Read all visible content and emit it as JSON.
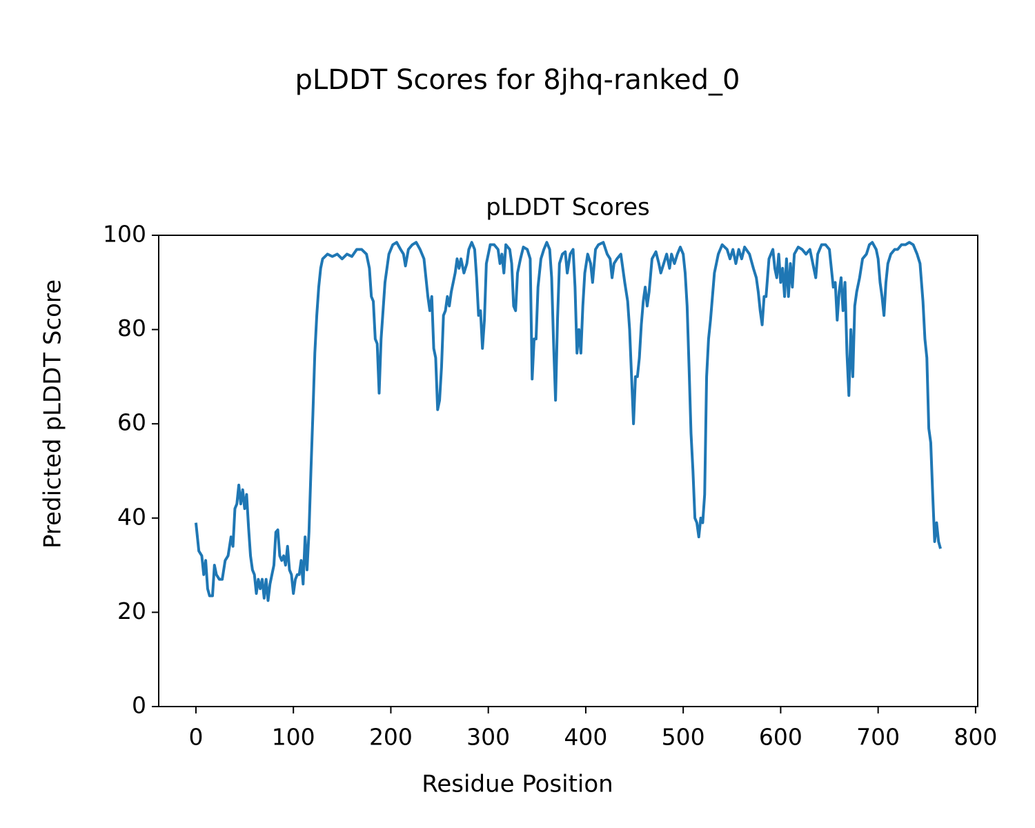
{
  "chart_data": {
    "type": "line",
    "title": "pLDDT Scores for 8jhq-ranked_0",
    "subtitle": "pLDDT Scores",
    "x_label": "Residue Position",
    "y_label": "Predicted pLDDT Score",
    "color": "#1f77b4",
    "xlim": [
      -38.2,
      802.2
    ],
    "xticks": [
      0,
      100,
      200,
      300,
      400,
      500,
      600,
      700,
      800
    ],
    "ylim": [
      0,
      100
    ],
    "yticks": [
      0,
      20,
      40,
      60,
      80,
      100
    ],
    "x": [
      0,
      3,
      6,
      8,
      10,
      12,
      14,
      17,
      19,
      21,
      24,
      27,
      30,
      33,
      36,
      38,
      40,
      42,
      44,
      46,
      48,
      50,
      52,
      54,
      56,
      58,
      60,
      62,
      64,
      66,
      68,
      70,
      72,
      74,
      76,
      78,
      80,
      82,
      84,
      86,
      88,
      90,
      92,
      94,
      96,
      98,
      100,
      102,
      104,
      106,
      108,
      110,
      112,
      114,
      116,
      118,
      120,
      122,
      124,
      126,
      128,
      130,
      135,
      140,
      145,
      150,
      155,
      160,
      165,
      170,
      175,
      178,
      180,
      182,
      184,
      186,
      188,
      190,
      192,
      194,
      196,
      198,
      202,
      206,
      210,
      213,
      215,
      218,
      222,
      226,
      230,
      234,
      236,
      238,
      240,
      242,
      244,
      246,
      248,
      250,
      252,
      254,
      256,
      258,
      260,
      262,
      264,
      266,
      268,
      270,
      272,
      275,
      278,
      280,
      283,
      286,
      288,
      290,
      292,
      294,
      296,
      298,
      302,
      306,
      310,
      312,
      314,
      316,
      318,
      322,
      324,
      326,
      328,
      330,
      333,
      336,
      340,
      343,
      345,
      347,
      349,
      351,
      354,
      357,
      360,
      363,
      365,
      367,
      369,
      371,
      373,
      376,
      379,
      381,
      384,
      387,
      389,
      391,
      393,
      395,
      397,
      399,
      402,
      405,
      407,
      410,
      413,
      418,
      422,
      425,
      427,
      429,
      432,
      436,
      438,
      440,
      443,
      445,
      447,
      449,
      451,
      453,
      455,
      457,
      459,
      461,
      463,
      465,
      468,
      472,
      475,
      477,
      480,
      483,
      486,
      488,
      491,
      494,
      497,
      500,
      502,
      504,
      506,
      508,
      510,
      512,
      514,
      516,
      518,
      520,
      522,
      524,
      526,
      528,
      530,
      532,
      536,
      540,
      545,
      548,
      551,
      554,
      557,
      560,
      563,
      568,
      572,
      575,
      577,
      579,
      581,
      583,
      585,
      588,
      592,
      594,
      596,
      598,
      600,
      602,
      604,
      606,
      608,
      610,
      612,
      614,
      618,
      622,
      626,
      630,
      634,
      636,
      638,
      642,
      646,
      650,
      652,
      654,
      656,
      658,
      660,
      662,
      664,
      666,
      668,
      670,
      672,
      674,
      676,
      678,
      681,
      684,
      688,
      691,
      694,
      698,
      700,
      702,
      704,
      706,
      708,
      710,
      713,
      717,
      720,
      724,
      728,
      732,
      736,
      740,
      743,
      746,
      748,
      750,
      752,
      754,
      756,
      758,
      760,
      762,
      764
    ],
    "values": [
      39,
      33,
      32,
      28,
      31,
      25,
      23.5,
      23.5,
      30,
      28,
      27,
      27,
      31,
      32,
      36,
      34,
      42,
      43,
      47,
      43,
      46,
      42,
      45,
      38,
      32,
      29,
      28,
      24,
      27,
      25,
      27,
      23,
      27,
      22.5,
      26,
      28,
      30,
      37,
      37.5,
      32,
      31,
      32,
      30,
      34,
      29,
      28,
      24,
      27,
      28,
      28,
      31,
      26,
      36,
      29,
      37,
      50,
      62,
      75,
      83,
      89,
      93,
      95,
      96,
      95.5,
      96,
      95,
      96,
      95.5,
      97,
      97,
      96,
      93,
      87,
      86,
      78,
      77,
      66.5,
      78,
      84,
      90,
      93,
      96,
      98,
      98.5,
      97,
      96,
      93.5,
      97,
      98,
      98.5,
      97,
      95,
      91,
      87,
      84,
      87,
      76,
      74,
      63,
      65,
      72,
      83,
      84,
      87,
      85,
      88,
      90,
      92,
      95,
      93,
      95,
      92,
      94,
      97,
      98.5,
      97,
      91,
      83,
      84,
      76,
      82,
      94,
      98,
      98,
      97,
      94,
      96,
      92,
      98,
      97,
      94,
      85,
      84,
      92,
      95,
      97.5,
      97,
      95,
      69.5,
      78,
      78,
      89,
      95,
      97,
      98.5,
      97,
      91,
      77,
      65,
      82,
      94,
      96,
      96.5,
      92,
      96,
      97,
      89,
      75,
      80,
      75,
      85,
      92,
      96,
      94,
      90,
      97,
      98,
      98.5,
      96,
      95,
      91,
      94,
      95,
      96,
      93,
      90,
      86,
      80,
      70,
      60,
      70,
      70,
      74,
      81,
      86,
      89,
      85,
      88,
      95,
      96.5,
      94,
      92,
      94,
      96,
      93,
      96,
      94,
      96,
      97.5,
      96,
      92,
      85,
      72,
      58,
      50,
      40,
      39,
      36,
      40,
      39,
      45,
      70,
      78,
      82,
      87,
      92,
      96,
      98,
      97,
      95,
      97,
      94,
      97,
      95,
      97.5,
      96,
      93,
      91,
      88,
      84,
      81,
      87,
      87,
      95,
      97,
      93,
      91,
      96,
      90,
      93,
      87,
      95,
      87,
      94,
      89,
      96,
      97.5,
      97,
      96,
      97,
      93,
      91,
      96,
      98,
      98,
      97,
      93,
      89,
      90,
      82,
      88,
      91,
      84,
      90,
      75,
      66,
      80,
      70,
      85,
      88,
      91,
      95,
      96,
      98,
      98.5,
      97,
      95,
      90,
      87,
      83,
      90,
      94,
      96,
      97,
      97,
      98,
      98,
      98.5,
      98,
      96,
      94,
      86,
      78,
      74,
      59,
      56,
      45,
      35,
      39,
      35,
      33.5
    ]
  }
}
